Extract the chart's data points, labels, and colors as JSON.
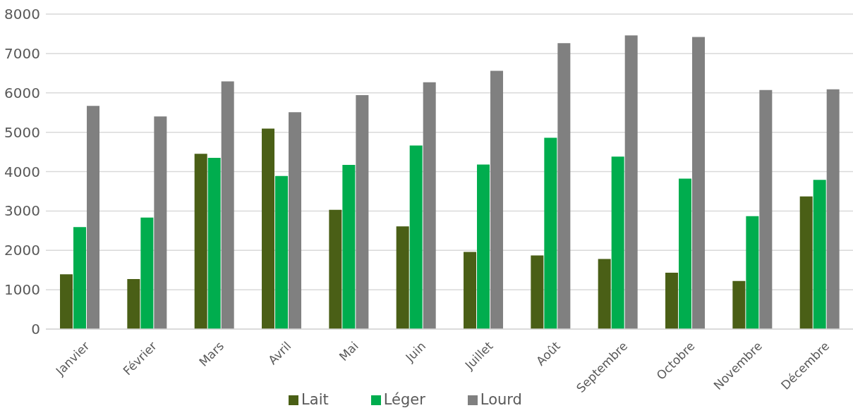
{
  "chart_data": {
    "type": "bar",
    "categories": [
      "Janvier",
      "Février",
      "Mars",
      "Avril",
      "Mai",
      "Juin",
      "Juillet",
      "Août",
      "Septembre",
      "Octobre",
      "Novembre",
      "Décembre"
    ],
    "series": [
      {
        "name": "Lait",
        "color": "#4a5f16",
        "values": [
          1390,
          1270,
          4450,
          5090,
          3030,
          2610,
          1960,
          1870,
          1780,
          1430,
          1220,
          3370
        ]
      },
      {
        "name": "Léger",
        "color": "#00ad4e",
        "values": [
          2590,
          2830,
          4350,
          3890,
          4170,
          4660,
          4180,
          4860,
          4380,
          3820,
          2870,
          3790
        ]
      },
      {
        "name": "Lourd",
        "color": "#808080",
        "values": [
          5670,
          5400,
          6290,
          5510,
          5940,
          6270,
          6560,
          7260,
          7460,
          7420,
          6070,
          6090
        ]
      }
    ],
    "ylim": [
      0,
      8000
    ],
    "yticks": [
      0,
      1000,
      2000,
      3000,
      4000,
      5000,
      6000,
      7000,
      8000
    ],
    "grid": "y",
    "legend": "bottom"
  }
}
